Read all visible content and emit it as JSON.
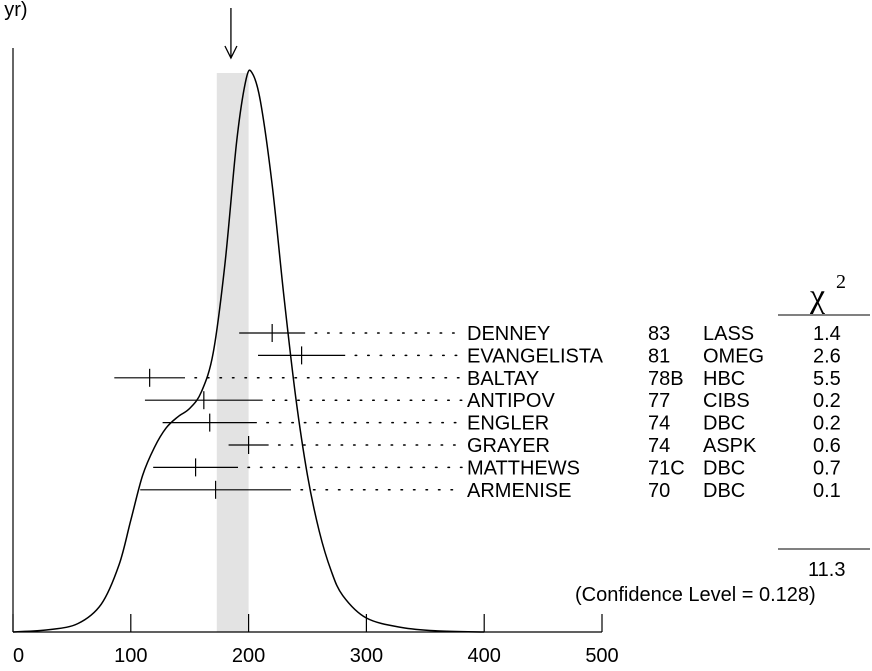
{
  "chart_data": {
    "type": "ideogram",
    "top_label": "(  yr)",
    "chi2_header": "χ",
    "chi2_exponent": "2",
    "xlim": [
      0,
      500
    ],
    "x_ticks": [
      {
        "value": 0,
        "label": "0"
      },
      {
        "value": 100,
        "label": "100"
      },
      {
        "value": 200,
        "label": "200"
      },
      {
        "value": 300,
        "label": "300"
      },
      {
        "value": 400,
        "label": "400"
      },
      {
        "value": 500,
        "label": "500"
      }
    ],
    "average_marker": 185,
    "error_band": [
      173,
      200
    ],
    "curve": [
      [
        0,
        0
      ],
      [
        30,
        0.004
      ],
      [
        55,
        0.015
      ],
      [
        75,
        0.05
      ],
      [
        90,
        0.12
      ],
      [
        100,
        0.2
      ],
      [
        110,
        0.28
      ],
      [
        120,
        0.33
      ],
      [
        130,
        0.365
      ],
      [
        140,
        0.385
      ],
      [
        150,
        0.4
      ],
      [
        160,
        0.43
      ],
      [
        170,
        0.5
      ],
      [
        180,
        0.66
      ],
      [
        190,
        0.88
      ],
      [
        198,
        0.99
      ],
      [
        203,
        1.0
      ],
      [
        210,
        0.95
      ],
      [
        220,
        0.8
      ],
      [
        230,
        0.6
      ],
      [
        240,
        0.42
      ],
      [
        250,
        0.28
      ],
      [
        260,
        0.18
      ],
      [
        270,
        0.11
      ],
      [
        280,
        0.065
      ],
      [
        300,
        0.025
      ],
      [
        330,
        0.008
      ],
      [
        360,
        0.002
      ],
      [
        400,
        0
      ]
    ],
    "measurements": [
      {
        "author": "DENNEY",
        "year": "83",
        "experiment": "LASS",
        "chi2": "1.4",
        "value": 220,
        "error": 28
      },
      {
        "author": "EVANGELISTA",
        "year": "81",
        "experiment": "OMEG",
        "chi2": "2.6",
        "value": 245,
        "error": 37
      },
      {
        "author": "BALTAY",
        "year": "78B",
        "experiment": "HBC",
        "chi2": "5.5",
        "value": 116,
        "error": 30
      },
      {
        "author": "ANTIPOV",
        "year": "77",
        "experiment": "CIBS",
        "chi2": "0.2",
        "value": 162,
        "error": 50
      },
      {
        "author": "ENGLER",
        "year": "74",
        "experiment": "DBC",
        "chi2": "0.2",
        "value": 167,
        "error": 40
      },
      {
        "author": "GRAYER",
        "year": "74",
        "experiment": "ASPK",
        "chi2": "0.6",
        "value": 200,
        "error": 17
      },
      {
        "author": "MATTHEWS",
        "year": "71C",
        "experiment": "DBC",
        "chi2": "0.7",
        "value": 155,
        "error": 36
      },
      {
        "author": "ARMENISE",
        "year": "70",
        "experiment": "DBC",
        "chi2": "0.1",
        "value": 172,
        "error": 64
      }
    ],
    "chi2_total": "11.3",
    "confidence_note": "(Confidence Level = 0.128)"
  }
}
